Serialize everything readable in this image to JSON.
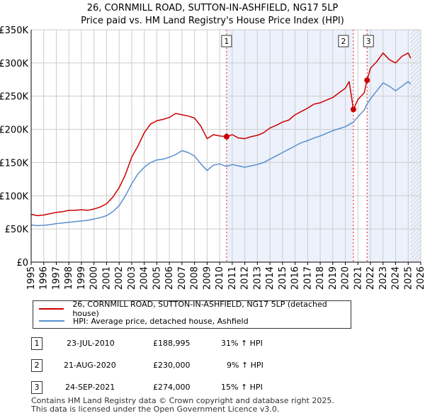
{
  "chart_data": {
    "type": "line",
    "title": "26, CORNMILL ROAD, SUTTON-IN-ASHFIELD, NG17 5LP",
    "subtitle": "Price paid vs. HM Land Registry's House Price Index (HPI)",
    "xlim": [
      1995,
      2026
    ],
    "ylim": [
      0,
      350000
    ],
    "x_ticks": [
      "1995",
      "1996",
      "1997",
      "1998",
      "1999",
      "2000",
      "2001",
      "2002",
      "2003",
      "2004",
      "2005",
      "2006",
      "2007",
      "2008",
      "2009",
      "2010",
      "2011",
      "2012",
      "2013",
      "2014",
      "2015",
      "2016",
      "2017",
      "2018",
      "2019",
      "2020",
      "2021",
      "2022",
      "2023",
      "2024",
      "2025",
      "2026"
    ],
    "y_ticks": [
      {
        "value": 0,
        "label": "£0"
      },
      {
        "value": 50000,
        "label": "£50K"
      },
      {
        "value": 100000,
        "label": "£100K"
      },
      {
        "value": 150000,
        "label": "£150K"
      },
      {
        "value": 200000,
        "label": "£200K"
      },
      {
        "value": 250000,
        "label": "£250K"
      },
      {
        "value": 300000,
        "label": "£300K"
      },
      {
        "value": 350000,
        "label": "£350K"
      }
    ],
    "grid": true,
    "shaded_ranges": [
      {
        "from": 2010.55,
        "to": 2020.64
      },
      {
        "from": 2021.73,
        "to": 2026
      }
    ],
    "future_hatch_from": 2025.2,
    "series": [
      {
        "name": "26, CORNMILL ROAD, SUTTON-IN-ASHFIELD, NG17 5LP (detached house)",
        "color": "#cc0000",
        "x": [
          1995.0,
          1995.5,
          1996.0,
          1996.5,
          1997.0,
          1997.5,
          1998.0,
          1998.5,
          1999.0,
          1999.5,
          2000.0,
          2000.5,
          2001.0,
          2001.5,
          2002.0,
          2002.5,
          2003.0,
          2003.5,
          2004.0,
          2004.5,
          2005.0,
          2005.5,
          2006.0,
          2006.5,
          2007.0,
          2007.5,
          2008.0,
          2008.5,
          2009.0,
          2009.5,
          2010.0,
          2010.55,
          2011.0,
          2011.5,
          2012.0,
          2012.5,
          2013.0,
          2013.5,
          2014.0,
          2014.5,
          2015.0,
          2015.5,
          2016.0,
          2016.5,
          2017.0,
          2017.5,
          2018.0,
          2018.5,
          2019.0,
          2019.5,
          2020.0,
          2020.3,
          2020.5,
          2020.64,
          2021.0,
          2021.5,
          2021.73,
          2022.0,
          2022.5,
          2023.0,
          2023.5,
          2024.0,
          2024.5,
          2025.0,
          2025.2
        ],
        "values": [
          72000,
          70000,
          71000,
          73000,
          75000,
          76000,
          78000,
          78000,
          79000,
          78000,
          80000,
          83000,
          88000,
          98000,
          112000,
          132000,
          158000,
          175000,
          195000,
          208000,
          213000,
          215000,
          218000,
          224000,
          222000,
          220000,
          217000,
          205000,
          186000,
          192000,
          190000,
          188995,
          192000,
          187000,
          186000,
          189000,
          191000,
          195000,
          202000,
          206000,
          211000,
          214000,
          222000,
          227000,
          232000,
          238000,
          240000,
          244000,
          248000,
          255000,
          262000,
          272000,
          248000,
          230000,
          245000,
          255000,
          274000,
          292000,
          302000,
          315000,
          305000,
          300000,
          310000,
          315000,
          307000
        ]
      },
      {
        "name": "HPI: Average price, detached house, Ashfield",
        "color": "#5a8fcf",
        "x": [
          1995.0,
          1995.5,
          1996.0,
          1996.5,
          1997.0,
          1997.5,
          1998.0,
          1998.5,
          1999.0,
          1999.5,
          2000.0,
          2000.5,
          2001.0,
          2001.5,
          2002.0,
          2002.5,
          2003.0,
          2003.5,
          2004.0,
          2004.5,
          2005.0,
          2005.5,
          2006.0,
          2006.5,
          2007.0,
          2007.5,
          2008.0,
          2008.5,
          2009.0,
          2009.5,
          2010.0,
          2010.55,
          2011.0,
          2011.5,
          2012.0,
          2012.5,
          2013.0,
          2013.5,
          2014.0,
          2014.5,
          2015.0,
          2015.5,
          2016.0,
          2016.5,
          2017.0,
          2017.5,
          2018.0,
          2018.5,
          2019.0,
          2019.5,
          2020.0,
          2020.64,
          2021.0,
          2021.5,
          2021.73,
          2022.0,
          2022.5,
          2023.0,
          2023.5,
          2024.0,
          2024.5,
          2025.0,
          2025.2
        ],
        "values": [
          56000,
          55000,
          55500,
          56500,
          58000,
          59000,
          60000,
          61000,
          62000,
          63000,
          65000,
          67000,
          70000,
          76000,
          85000,
          100000,
          118000,
          133000,
          143000,
          150000,
          154000,
          155000,
          158000,
          162000,
          168000,
          165000,
          160000,
          148000,
          138000,
          146000,
          148000,
          144000,
          147000,
          145000,
          143000,
          145000,
          147000,
          150000,
          155000,
          160000,
          165000,
          170000,
          175000,
          180000,
          183000,
          187000,
          190000,
          194000,
          198000,
          201000,
          204000,
          211000,
          219000,
          229000,
          238000,
          246000,
          258000,
          270000,
          265000,
          258000,
          265000,
          272000,
          268000
        ]
      }
    ],
    "markers": [
      {
        "label": "1",
        "x": 2010.55,
        "y": 188995,
        "color": "#cc0000"
      },
      {
        "label": "2",
        "x": 2020.64,
        "y": 230000,
        "color": "#cc0000"
      },
      {
        "label": "3",
        "x": 2021.73,
        "y": 274000,
        "color": "#cc0000"
      }
    ]
  },
  "legend": [
    {
      "label": "26, CORNMILL ROAD, SUTTON-IN-ASHFIELD, NG17 5LP (detached house)",
      "color": "#cc0000"
    },
    {
      "label": "HPI: Average price, detached house, Ashfield",
      "color": "#5a8fcf"
    }
  ],
  "transactions": [
    {
      "num": "1",
      "date": "23-JUL-2010",
      "price": "£188,995",
      "hpi": "31% ↑ HPI"
    },
    {
      "num": "2",
      "date": "21-AUG-2020",
      "price": "£230,000",
      "hpi": "9% ↑ HPI"
    },
    {
      "num": "3",
      "date": "24-SEP-2021",
      "price": "£274,000",
      "hpi": "15% ↑ HPI"
    }
  ],
  "footer": {
    "line1": "Contains HM Land Registry data © Crown copyright and database right 2025.",
    "line2": "This data is licensed under the Open Government Licence v3.0."
  }
}
